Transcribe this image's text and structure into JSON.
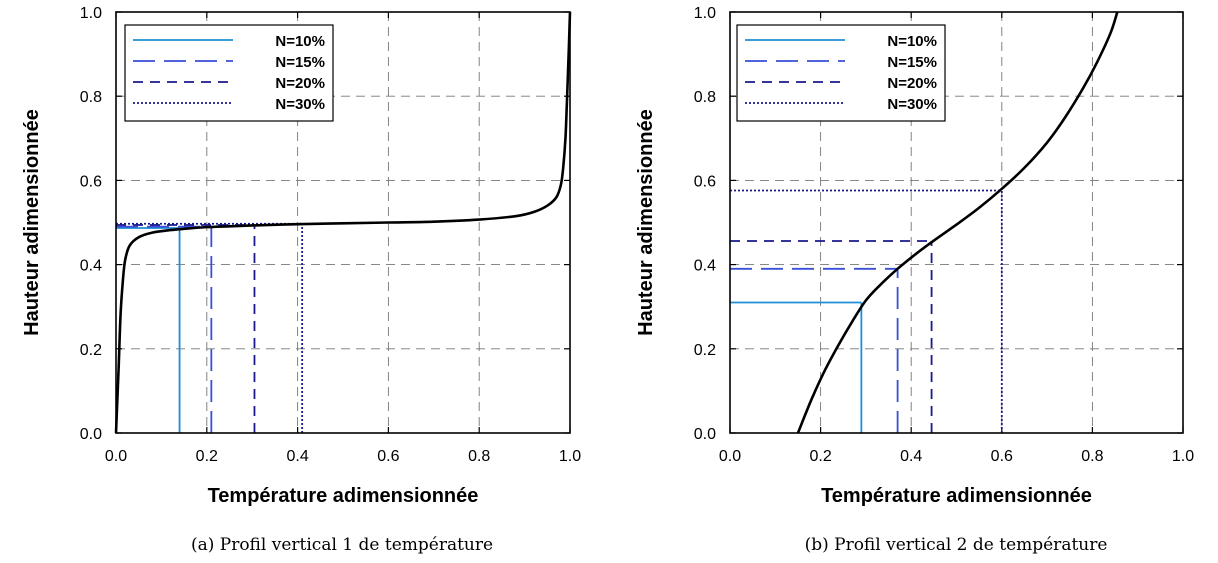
{
  "chart_data": [
    {
      "type": "line",
      "xlabel": "Température adimensionnée",
      "ylabel": "Hauteur adimensionnée",
      "caption": "(a) Profil vertical 1 de température",
      "xlim": [
        0,
        1
      ],
      "ylim": [
        0,
        1
      ],
      "xticks": [
        "0.0",
        "0.2",
        "0.4",
        "0.6",
        "0.8",
        "1.0"
      ],
      "yticks": [
        "0.0",
        "0.2",
        "0.4",
        "0.6",
        "0.8",
        "1.0"
      ],
      "grid": true,
      "legend_position": "top-left",
      "profile": {
        "x": [
          0.0,
          0.003,
          0.006,
          0.01,
          0.015,
          0.02,
          0.03,
          0.05,
          0.08,
          0.12,
          0.16,
          0.2,
          0.25,
          0.3,
          0.4,
          0.5,
          0.6,
          0.7,
          0.8,
          0.88,
          0.92,
          0.95,
          0.97,
          0.98,
          0.985,
          0.99,
          0.993,
          0.997,
          1.0
        ],
        "y": [
          0.0,
          0.08,
          0.16,
          0.28,
          0.36,
          0.41,
          0.445,
          0.465,
          0.476,
          0.482,
          0.486,
          0.489,
          0.491,
          0.493,
          0.496,
          0.498,
          0.5,
          0.502,
          0.507,
          0.515,
          0.525,
          0.54,
          0.56,
          0.59,
          0.63,
          0.7,
          0.78,
          0.9,
          1.0
        ]
      },
      "series": [
        {
          "name": "N=10%",
          "x": 0.14,
          "y": 0.487,
          "color": "#1e8fd6",
          "dash": "solid"
        },
        {
          "name": "N=15%",
          "x": 0.21,
          "y": 0.49,
          "color": "#3a4fd8",
          "dash": "longdash"
        },
        {
          "name": "N=20%",
          "x": 0.305,
          "y": 0.494,
          "color": "#1a1a8c",
          "dash": "dash"
        },
        {
          "name": "N=30%",
          "x": 0.41,
          "y": 0.497,
          "color": "#1a1a8c",
          "dash": "dot"
        }
      ]
    },
    {
      "type": "line",
      "xlabel": "Température adimensionnée",
      "ylabel": "Hauteur adimensionnée",
      "caption": "(b) Profil vertical 2 de température",
      "xlim": [
        0,
        1
      ],
      "ylim": [
        0,
        1
      ],
      "xticks": [
        "0.0",
        "0.2",
        "0.4",
        "0.6",
        "0.8",
        "1.0"
      ],
      "yticks": [
        "0.0",
        "0.2",
        "0.4",
        "0.6",
        "0.8",
        "1.0"
      ],
      "grid": true,
      "legend_position": "top-left",
      "profile": {
        "x": [
          0.15,
          0.18,
          0.21,
          0.24,
          0.27,
          0.3,
          0.33,
          0.37,
          0.41,
          0.45,
          0.5,
          0.55,
          0.6,
          0.65,
          0.7,
          0.74,
          0.78,
          0.81,
          0.84,
          0.855
        ],
        "y": [
          0.0,
          0.08,
          0.15,
          0.21,
          0.265,
          0.315,
          0.35,
          0.39,
          0.425,
          0.457,
          0.495,
          0.535,
          0.58,
          0.63,
          0.69,
          0.75,
          0.82,
          0.88,
          0.95,
          1.0
        ]
      },
      "series": [
        {
          "name": "N=10%",
          "x": 0.29,
          "y": 0.31,
          "color": "#1e8fd6",
          "dash": "solid"
        },
        {
          "name": "N=15%",
          "x": 0.37,
          "y": 0.39,
          "color": "#3a4fd8",
          "dash": "longdash"
        },
        {
          "name": "N=20%",
          "x": 0.445,
          "y": 0.456,
          "color": "#1a1a8c",
          "dash": "dash"
        },
        {
          "name": "N=30%",
          "x": 0.6,
          "y": 0.576,
          "color": "#1a1a8c",
          "dash": "dot"
        }
      ]
    }
  ]
}
